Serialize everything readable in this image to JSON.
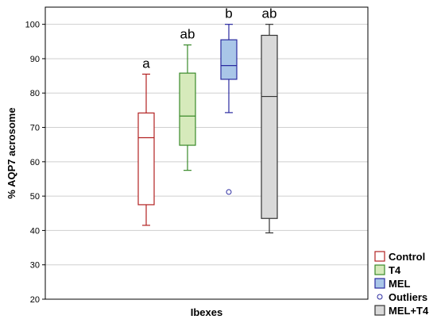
{
  "chart_data": {
    "type": "box",
    "xlabel": "Ibexes",
    "ylabel": "% AQP7 acrosome",
    "ylim": [
      20,
      105
    ],
    "yticks": [
      20,
      30,
      40,
      50,
      60,
      70,
      80,
      90,
      100
    ],
    "grid": "horizontal",
    "legend_placement": "bottom-right",
    "series": [
      {
        "name": "Control",
        "color": "#b22222",
        "fill": "#ffffff",
        "whisker_low": 41.5,
        "q1": 47.5,
        "median": 67,
        "q3": 74.2,
        "whisker_high": 85.5,
        "significance": "a"
      },
      {
        "name": "T4",
        "color": "#3a8a2a",
        "fill": "#d6eabb",
        "whisker_low": 57.5,
        "q1": 64.8,
        "median": 73.3,
        "q3": 85.8,
        "whisker_high": 94,
        "significance": "ab"
      },
      {
        "name": "MEL",
        "color": "#2a2aa0",
        "fill": "#a9c6e8",
        "whisker_low": 74.3,
        "q1": 84,
        "median": 88,
        "q3": 95.5,
        "whisker_high": 100,
        "outliers": [
          51.2
        ],
        "significance": "b"
      },
      {
        "name": "MEL+T4",
        "color": "#333333",
        "fill": "#d9d9d9",
        "whisker_low": 39.3,
        "q1": 43.5,
        "median": 79,
        "q3": 96.8,
        "whisker_high": 100,
        "significance": "ab"
      }
    ],
    "legend": [
      {
        "label": "Control",
        "symbol": "box",
        "color": "#b22222",
        "fill": "#ffffff"
      },
      {
        "label": "T4",
        "symbol": "box",
        "color": "#3a8a2a",
        "fill": "#d6eabb"
      },
      {
        "label": "MEL",
        "symbol": "box",
        "color": "#2a2aa0",
        "fill": "#a9c6e8"
      },
      {
        "label": "Outliers",
        "symbol": "circle",
        "color": "#2a2aa0",
        "fill": "#ffffff"
      },
      {
        "label": "MEL+T4",
        "symbol": "box",
        "color": "#333333",
        "fill": "#d9d9d9"
      }
    ]
  }
}
